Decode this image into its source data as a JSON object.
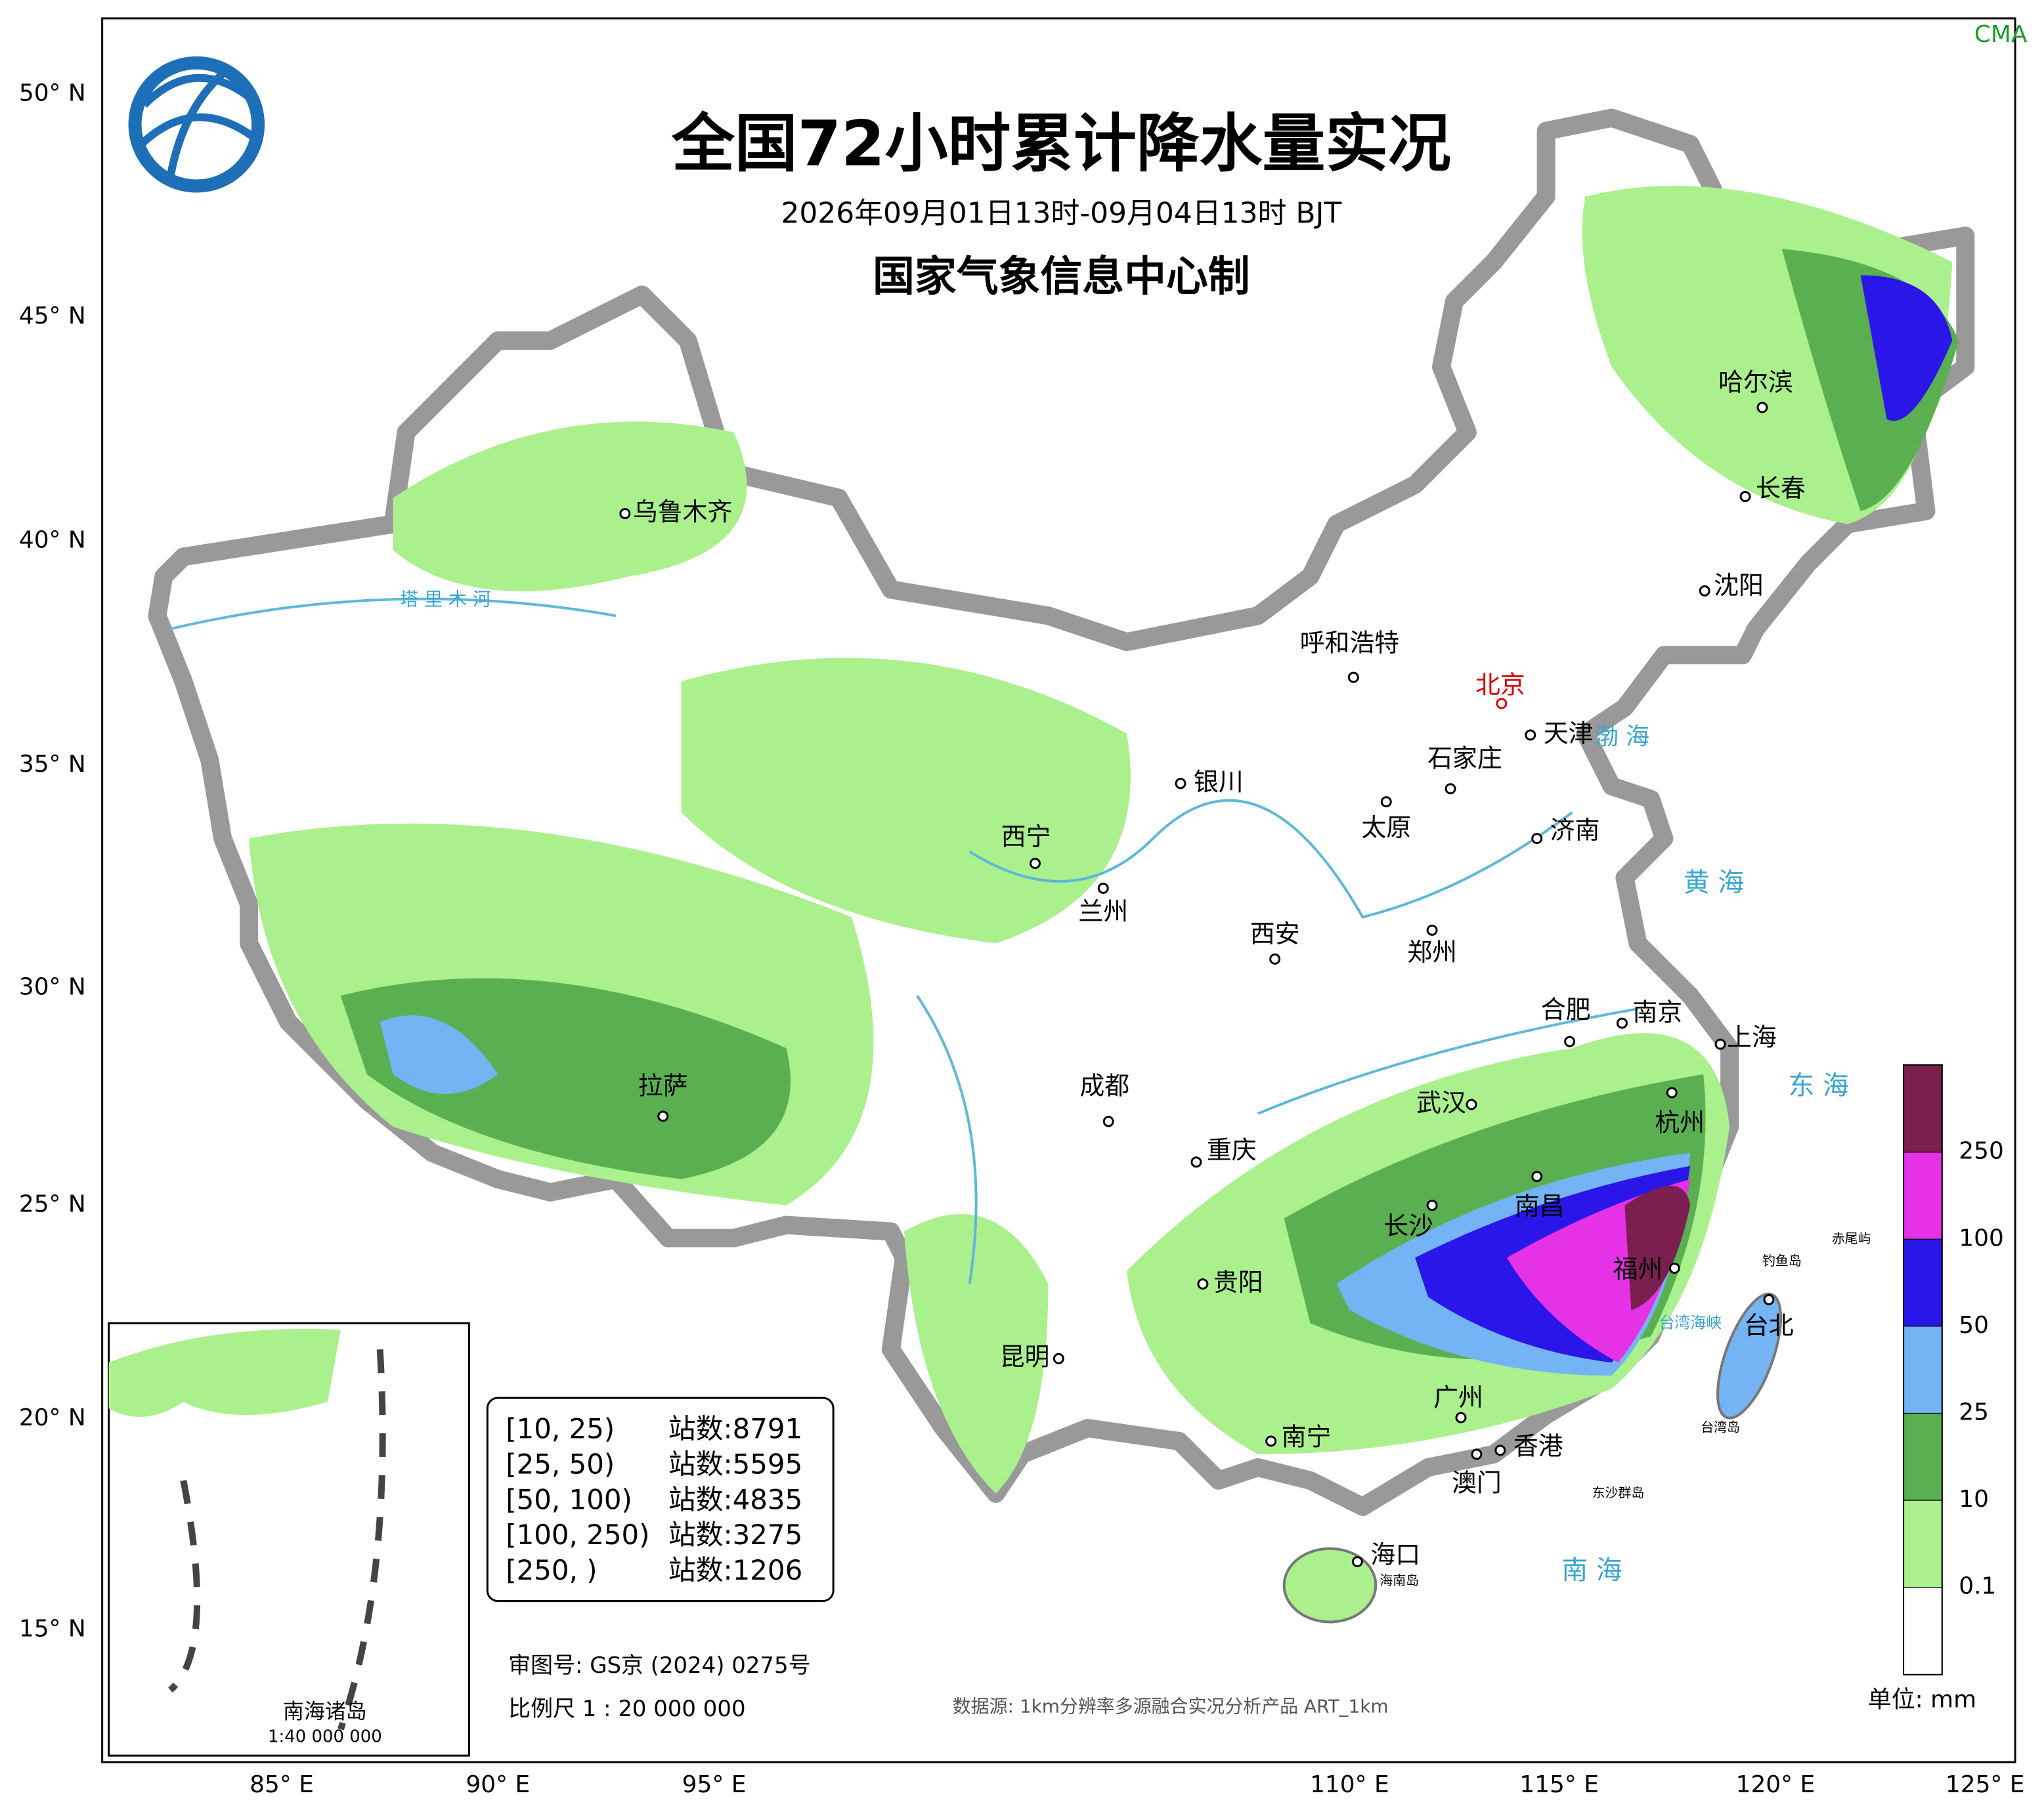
{
  "header": {
    "title": "全国72小时累计降水量实况",
    "subtitle": "2026年09月01日13时-09月04日13时 BJT",
    "producer": "国家气象信息中心制",
    "mark": "CMA"
  },
  "lat_labels": [
    "50° N",
    "45° N",
    "40° N",
    "35° N",
    "30° N",
    "25° N",
    "20° N",
    "15° N"
  ],
  "lon_labels": [
    "85° E",
    "90° E",
    "95° E",
    "110° E",
    "115° E",
    "120° E",
    "125° E"
  ],
  "cities": [
    "乌鲁木齐",
    "呼和浩特",
    "北京",
    "天津",
    "石家庄",
    "银川",
    "太原",
    "济南",
    "西宁",
    "兰州",
    "西安",
    "郑州",
    "合肥",
    "南京",
    "上海",
    "拉萨",
    "成都",
    "武汉",
    "杭州",
    "重庆",
    "长沙",
    "南昌",
    "贵阳",
    "福州",
    "昆明",
    "台北",
    "广州",
    "南宁",
    "香港",
    "澳门",
    "海口",
    "哈尔滨",
    "长春",
    "沈阳"
  ],
  "water_labels": [
    "塔 里 木 河",
    "渤 海",
    "黄 海",
    "东 海",
    "南 海",
    "台湾海峡",
    "海南岛",
    "台湾岛",
    "钓鱼岛",
    "赤尾屿",
    "东沙群岛"
  ],
  "stations": [
    {
      "range": "[10, 25)",
      "count": "站数:8791"
    },
    {
      "range": "[25, 50)",
      "count": "站数:5595"
    },
    {
      "range": "[50, 100)",
      "count": "站数:4835"
    },
    {
      "range": "[100, 250)",
      "count": "站数:3275"
    },
    {
      "range": "[250, )",
      "count": "站数:1206"
    }
  ],
  "legend": {
    "levels": [
      "250",
      "100",
      "50",
      "25",
      "10",
      "0.1"
    ],
    "colors": [
      "#7a1f4f",
      "#e632e6",
      "#2a16e8",
      "#74b4f5",
      "#5ab050",
      "#aaf08c",
      "#ffffff"
    ],
    "unit": "单位: mm"
  },
  "footer": {
    "review": "审图号: GS京 (2024) 0275号",
    "scale": "比例尺 1 : 20 000 000",
    "source": "数据源: 1km分辨率多源融合实况分析产品 ART_1km"
  },
  "inset": {
    "title": "南海诸岛",
    "scale": "1:40 000 000"
  }
}
